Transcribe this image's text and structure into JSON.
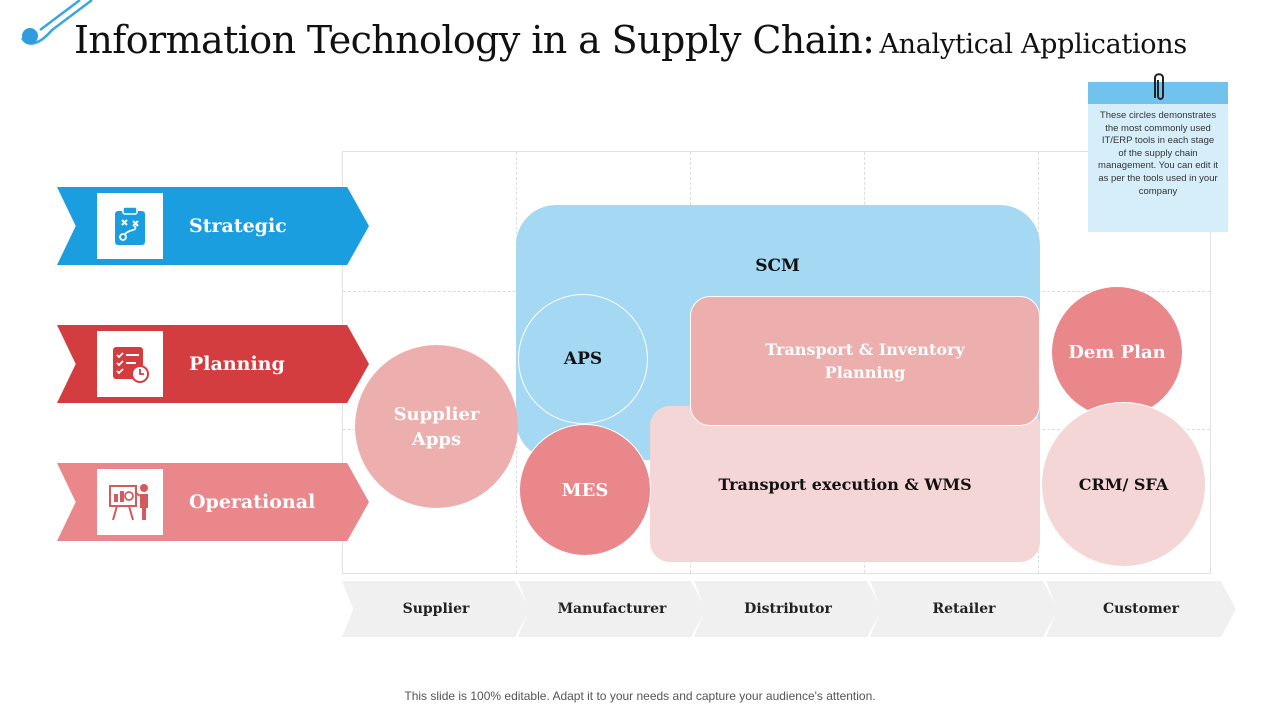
{
  "title": {
    "main": "Information Technology in a Supply Chain:",
    "sub": "Analytical Applications"
  },
  "levels": [
    {
      "label": "Strategic",
      "icon": "clipboard-strategy-icon",
      "color": "#1b9ee0"
    },
    {
      "label": "Planning",
      "icon": "checklist-clock-icon",
      "color": "#d43d3f"
    },
    {
      "label": "Operational",
      "icon": "presentation-board-icon",
      "color": "#e9878a"
    }
  ],
  "applications": {
    "scm": "SCM",
    "aps": "APS",
    "transport_inventory": "Transport & Inventory Planning",
    "dem_plan": "Dem Plan",
    "supplier_apps": "Supplier Apps",
    "mes": "MES",
    "transport_execution": "Transport execution & WMS",
    "crm_sfa": "CRM/ SFA"
  },
  "stages": [
    "Supplier",
    "Manufacturer",
    "Distributor",
    "Retailer",
    "Customer"
  ],
  "note": {
    "text": "These circles demonstrates the most commonly used IT/ERP tools in each stage of the supply chain management. You can edit it as per the tools used in your company"
  },
  "footer": "This slide is 100% editable. Adapt it to your needs and capture your audience's attention.",
  "colors": {
    "blue": "#1b9ee0",
    "light_blue": "#a5d8f2",
    "red": "#d43d3f",
    "pink": "#e9878a",
    "light_pink": "#edaeae",
    "pale_pink": "#f5d6d7"
  }
}
